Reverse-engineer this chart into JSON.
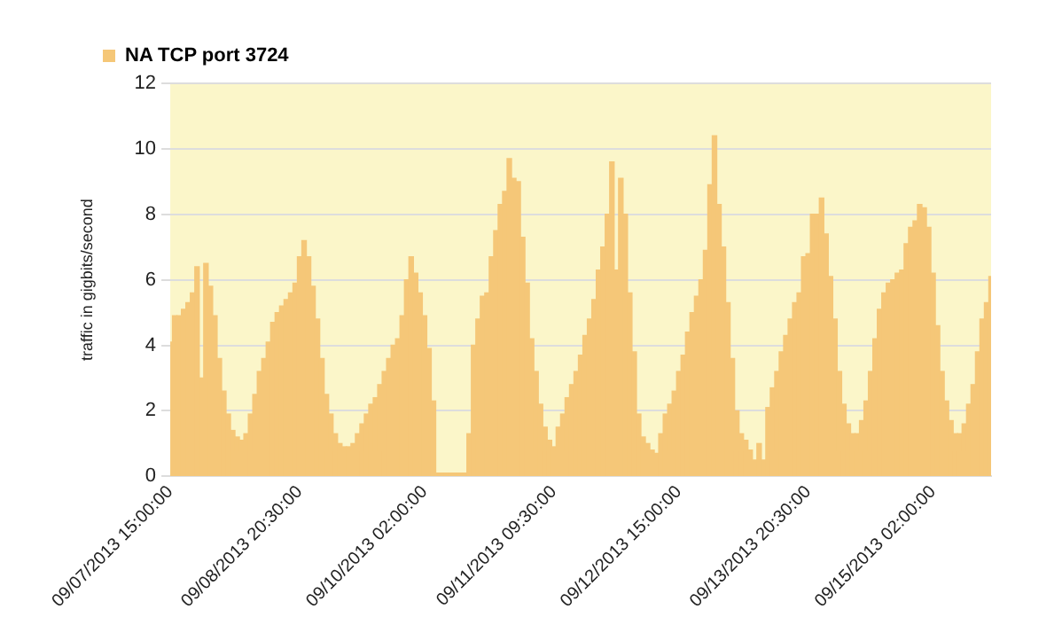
{
  "chart_data": {
    "type": "bar",
    "ylabel": "traffic in gigbits/second",
    "categories": [
      "09/07/2013 15:00:00",
      null,
      null,
      null,
      null,
      null,
      null,
      null,
      null,
      null,
      null,
      null,
      null,
      null,
      null,
      null,
      null,
      null,
      null,
      null,
      null,
      null,
      null,
      null,
      null,
      null,
      null,
      null,
      null,
      "09/08/2013 20:30:00",
      null,
      null,
      null,
      null,
      null,
      null,
      null,
      null,
      null,
      null,
      null,
      null,
      null,
      null,
      null,
      null,
      null,
      null,
      null,
      null,
      null,
      null,
      null,
      null,
      null,
      null,
      null,
      "09/10/2013 02:00:00",
      null,
      null,
      null,
      null,
      null,
      null,
      null,
      null,
      null,
      null,
      null,
      null,
      null,
      null,
      null,
      null,
      null,
      null,
      null,
      null,
      null,
      null,
      null,
      null,
      null,
      null,
      null,
      null,
      "09/11/2013 09:30:00",
      null,
      null,
      null,
      null,
      null,
      null,
      null,
      null,
      null,
      null,
      null,
      null,
      null,
      null,
      null,
      null,
      null,
      null,
      null,
      null,
      null,
      null,
      null,
      null,
      null,
      null,
      null,
      "09/12/2013 15:00:00",
      null,
      null,
      null,
      null,
      null,
      null,
      null,
      null,
      null,
      null,
      null,
      null,
      null,
      null,
      null,
      null,
      null,
      null,
      null,
      null,
      null,
      null,
      null,
      null,
      null,
      null,
      null,
      null,
      "09/13/2013 20:30:00",
      null,
      null,
      null,
      null,
      null,
      null,
      null,
      null,
      null,
      null,
      null,
      null,
      null,
      null,
      null,
      null,
      null,
      null,
      null,
      null,
      null,
      null,
      null,
      null,
      null,
      null,
      null,
      "09/15/2013 02:00:00",
      null,
      null,
      null,
      null,
      null,
      null,
      null,
      null,
      null,
      null,
      null,
      null,
      null
    ],
    "series": [
      {
        "name": "NA TCP port 3724",
        "color": "#f5c778",
        "values": [
          4.1,
          4.9,
          4.9,
          5.1,
          5.3,
          5.6,
          6.4,
          3.0,
          6.5,
          5.8,
          4.9,
          3.6,
          2.6,
          1.9,
          1.4,
          1.2,
          1.1,
          1.3,
          1.9,
          2.5,
          3.2,
          3.6,
          4.1,
          4.7,
          5.0,
          5.2,
          5.4,
          5.6,
          5.9,
          6.7,
          7.2,
          6.7,
          5.8,
          4.8,
          3.6,
          2.5,
          1.9,
          1.3,
          1.0,
          0.9,
          0.9,
          1.0,
          1.3,
          1.6,
          1.9,
          2.2,
          2.4,
          2.8,
          3.2,
          3.6,
          4.0,
          4.2,
          4.9,
          6.0,
          6.7,
          6.2,
          5.6,
          4.9,
          3.9,
          2.3,
          0.1,
          0.1,
          0.1,
          0.1,
          0.1,
          0.1,
          0.1,
          1.3,
          4.0,
          4.8,
          5.5,
          5.6,
          6.7,
          7.5,
          8.3,
          8.7,
          9.7,
          9.1,
          9.0,
          7.3,
          5.9,
          4.2,
          3.2,
          2.2,
          1.5,
          1.1,
          0.9,
          1.5,
          1.9,
          2.4,
          2.8,
          3.2,
          3.7,
          4.3,
          4.8,
          5.4,
          6.3,
          7.0,
          8.0,
          9.6,
          6.3,
          9.1,
          8.0,
          5.6,
          3.8,
          1.9,
          1.2,
          1.0,
          0.8,
          0.7,
          1.3,
          1.9,
          2.2,
          2.6,
          3.2,
          3.7,
          4.4,
          5.0,
          5.5,
          6.0,
          6.9,
          8.9,
          10.4,
          8.3,
          7.0,
          5.3,
          3.6,
          2.0,
          1.3,
          1.1,
          0.8,
          0.5,
          1.0,
          0.5,
          2.1,
          2.7,
          3.2,
          3.8,
          4.3,
          4.8,
          5.3,
          5.6,
          6.7,
          6.8,
          8.0,
          8.0,
          8.5,
          7.4,
          6.1,
          4.8,
          3.2,
          2.2,
          1.6,
          1.3,
          1.3,
          1.7,
          2.3,
          3.2,
          4.2,
          5.1,
          5.6,
          5.9,
          6.0,
          6.2,
          6.3,
          7.1,
          7.6,
          7.8,
          8.3,
          8.2,
          7.6,
          6.2,
          4.6,
          3.2,
          2.3,
          1.7,
          1.3,
          1.3,
          1.6,
          2.2,
          2.8,
          3.8,
          4.8,
          5.3,
          6.1
        ]
      }
    ],
    "ylim": [
      0,
      12
    ],
    "yticks": [
      0,
      2,
      4,
      6,
      8,
      10,
      12
    ],
    "grid": "y",
    "legend": "top left"
  }
}
